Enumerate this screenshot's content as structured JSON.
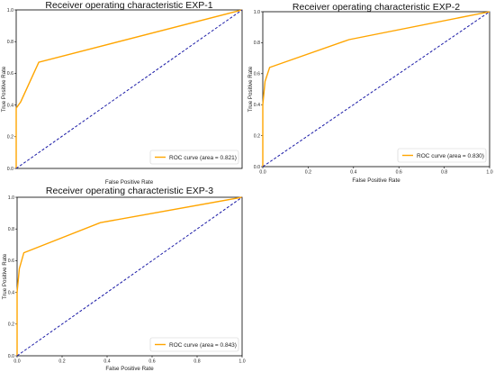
{
  "colors": {
    "roc": "#FFA500",
    "diagonal": "#1a1aa6",
    "axis": "#000000"
  },
  "chart_data": [
    {
      "type": "line",
      "title": "Receiver operating characteristic EXP-1",
      "xlabel": "False Positive Rate",
      "ylabel": "True Positive Rate",
      "xlim": [
        0,
        1
      ],
      "ylim": [
        0,
        1
      ],
      "xticks": [
        "0.0",
        "0.2",
        "0.4",
        "0.6",
        "0.8",
        "1.0"
      ],
      "yticks": [
        "0.0",
        "0.2",
        "0.4",
        "0.6",
        "0.8",
        "1.0"
      ],
      "show_xticks": false,
      "grid": false,
      "legend_position": "lower-right",
      "series": [
        {
          "name": "ROC curve (area = 0.821)",
          "style": "solid",
          "color": "#FFA500",
          "x": [
            0,
            0,
            0.02,
            0.1,
            1
          ],
          "y": [
            0,
            0.38,
            0.42,
            0.67,
            1
          ]
        },
        {
          "style": "dashed",
          "color": "#1a1aa6",
          "x": [
            0,
            1
          ],
          "y": [
            0,
            1
          ]
        }
      ]
    },
    {
      "type": "line",
      "title": "Receiver operating characteristic EXP-2",
      "xlabel": "False Positive Rate",
      "ylabel": "True Positive Rate",
      "xlim": [
        0,
        1
      ],
      "ylim": [
        0,
        1
      ],
      "xticks": [
        "0.0",
        "0.2",
        "0.4",
        "0.6",
        "0.8",
        "1.0"
      ],
      "yticks": [
        "0.0",
        "0.2",
        "0.4",
        "0.6",
        "0.8",
        "1.0"
      ],
      "show_xticks": true,
      "grid": false,
      "legend_position": "lower-right",
      "series": [
        {
          "name": "ROC curve (area = 0.830)",
          "style": "solid",
          "color": "#FFA500",
          "x": [
            0,
            0,
            0.01,
            0.03,
            0.38,
            1
          ],
          "y": [
            0,
            0.4,
            0.55,
            0.64,
            0.82,
            1
          ]
        },
        {
          "style": "dashed",
          "color": "#1a1aa6",
          "x": [
            0,
            1
          ],
          "y": [
            0,
            1
          ]
        }
      ]
    },
    {
      "type": "line",
      "title": "Receiver operating characteristic EXP-3",
      "xlabel": "False Positive Rate",
      "ylabel": "True Positive Rate",
      "xlim": [
        0,
        1
      ],
      "ylim": [
        0,
        1
      ],
      "xticks": [
        "0.0",
        "0.2",
        "0.4",
        "0.6",
        "0.8",
        "1.0"
      ],
      "yticks": [
        "0.0",
        "0.2",
        "0.4",
        "0.6",
        "0.8",
        "1.0"
      ],
      "show_xticks": true,
      "grid": false,
      "legend_position": "lower-right",
      "series": [
        {
          "name": "ROC curve (area = 0.843)",
          "style": "solid",
          "color": "#FFA500",
          "x": [
            0,
            0,
            0.01,
            0.03,
            0.37,
            1
          ],
          "y": [
            0,
            0.4,
            0.55,
            0.65,
            0.84,
            1
          ]
        },
        {
          "style": "dashed",
          "color": "#1a1aa6",
          "x": [
            0,
            1
          ],
          "y": [
            0,
            1
          ]
        }
      ]
    }
  ]
}
